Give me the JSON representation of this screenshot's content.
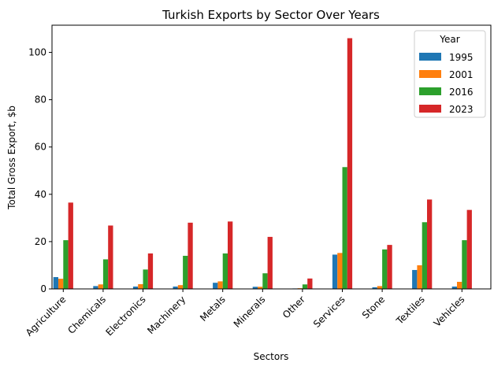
{
  "chart_data": {
    "type": "bar",
    "title": "Turkish Exports by Sector Over Years",
    "xlabel": "Sectors",
    "ylabel": "Total Gross Export, $b",
    "ylim": [
      0,
      111.5
    ],
    "yticks": [
      0,
      20,
      40,
      60,
      80,
      100
    ],
    "grid": false,
    "legend_placement": "top-right",
    "legend_title": "Year",
    "categories": [
      "Agriculture",
      "Chemicals",
      "Electronics",
      "Machinery",
      "Metals",
      "Minerals",
      "Other",
      "Services",
      "Stone",
      "Textiles",
      "Vehicles"
    ],
    "series": [
      {
        "name": "1995",
        "color": "#1f77b4",
        "values": [
          5.0,
          1.2,
          1.0,
          1.0,
          2.6,
          0.9,
          0.2,
          14.5,
          0.7,
          8.0,
          1.0
        ]
      },
      {
        "name": "2001",
        "color": "#ff7f0e",
        "values": [
          4.3,
          1.9,
          2.0,
          1.6,
          3.2,
          0.9,
          0.3,
          15.2,
          1.2,
          10.0,
          3.0
        ]
      },
      {
        "name": "2016",
        "color": "#2ca02c",
        "values": [
          20.6,
          12.5,
          8.2,
          14.0,
          15.0,
          6.6,
          1.9,
          51.5,
          16.7,
          28.2,
          20.6
        ]
      },
      {
        "name": "2023",
        "color": "#d62728",
        "values": [
          36.5,
          26.8,
          15.0,
          28.0,
          28.5,
          22.0,
          4.4,
          106.0,
          18.6,
          37.8,
          33.4
        ]
      }
    ]
  }
}
